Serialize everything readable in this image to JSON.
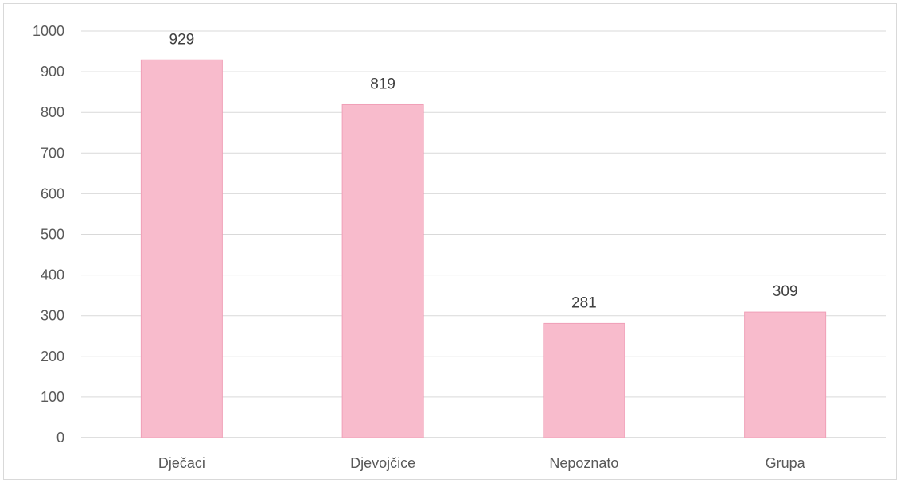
{
  "chart_data": {
    "type": "bar",
    "title": "",
    "xlabel": "",
    "ylabel": "",
    "categories": [
      "Dječaci",
      "Djevojčice",
      "Nepoznato",
      "Grupa"
    ],
    "values": [
      929,
      819,
      281,
      309
    ],
    "data_labels": [
      "929",
      "819",
      "281",
      "309"
    ],
    "ylim": [
      0,
      1000
    ],
    "yticks": [
      0,
      100,
      200,
      300,
      400,
      500,
      600,
      700,
      800,
      900,
      1000
    ],
    "ytick_labels": [
      "0",
      "100",
      "200",
      "300",
      "400",
      "500",
      "600",
      "700",
      "800",
      "900",
      "1000"
    ],
    "grid": true,
    "legend": "none",
    "colors": {
      "bar_fill": "#f8bbcc",
      "bar_edge": "#f0a0b8"
    }
  }
}
